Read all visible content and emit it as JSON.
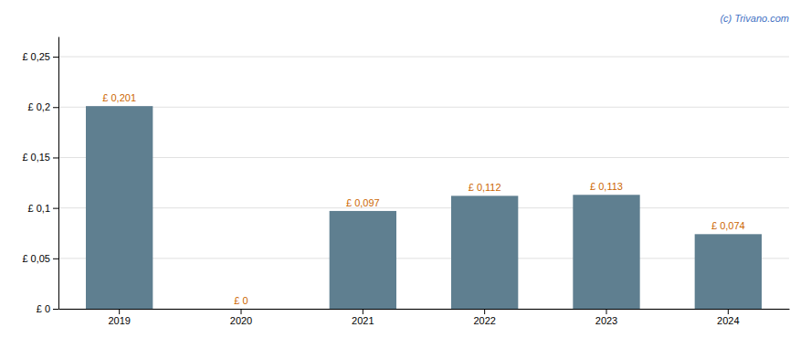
{
  "chart_data": {
    "type": "bar",
    "categories": [
      "2019",
      "2020",
      "2021",
      "2022",
      "2023",
      "2024"
    ],
    "values": [
      0.201,
      0.0,
      0.097,
      0.112,
      0.113,
      0.074
    ],
    "value_labels": [
      "£ 0,201",
      "£ 0",
      "£ 0,097",
      "£ 0,112",
      "£ 0,113",
      "£ 0,074"
    ],
    "data_labels": true,
    "color": "#5f7f90",
    "ylim": [
      0,
      0.27
    ],
    "yticks": [
      {
        "value": 0,
        "label": "£ 0"
      },
      {
        "value": 0.05,
        "label": "£ 0,05"
      },
      {
        "value": 0.1,
        "label": "£ 0,1"
      },
      {
        "value": 0.15,
        "label": "£ 0,15"
      },
      {
        "value": 0.2,
        "label": "£ 0,2"
      },
      {
        "value": 0.25,
        "label": "£ 0,25"
      }
    ],
    "grid": true,
    "annotation": "(c) Trivano.com"
  }
}
